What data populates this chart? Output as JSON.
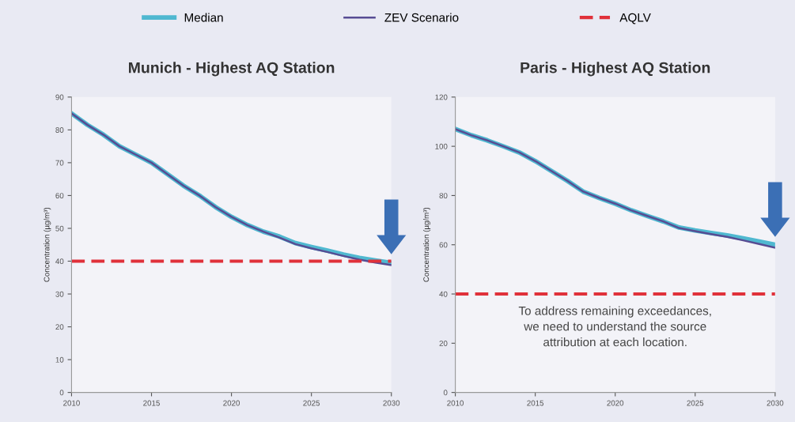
{
  "chart_data": [
    {
      "type": "line",
      "title": "Munich - Highest AQ Station",
      "ylabel": "Concentration (µg/m³)",
      "x": [
        2010,
        2011,
        2012,
        2013,
        2014,
        2015,
        2016,
        2017,
        2018,
        2019,
        2020,
        2021,
        2022,
        2023,
        2024,
        2025,
        2026,
        2027,
        2028,
        2029,
        2030
      ],
      "series": [
        {
          "name": "Median",
          "color": "#4fb8d0",
          "values": [
            85,
            81.5,
            78.5,
            75,
            72.5,
            70,
            66.5,
            63,
            60,
            56.5,
            53.5,
            51,
            49,
            47.5,
            45.5,
            44.3,
            43.2,
            42,
            41,
            40.2,
            39.5
          ]
        },
        {
          "name": "ZEV Scenario",
          "color": "#574c93",
          "values": [
            85,
            81.5,
            78.5,
            75,
            72.5,
            70,
            66.5,
            63,
            60,
            56.5,
            53.5,
            51,
            49,
            47.2,
            45.2,
            43.9,
            42.8,
            41.6,
            40.5,
            39.6,
            38.8
          ]
        }
      ],
      "ref_lines": [
        {
          "axis": "y",
          "value": 40,
          "label": "AQLV",
          "color": "#e0313a",
          "line_style": "dashed"
        }
      ],
      "xlim": [
        2010,
        2030
      ],
      "xticks": [
        2010,
        2015,
        2020,
        2025,
        2030
      ],
      "ylim": [
        0,
        90
      ],
      "yticks": [
        0,
        10,
        20,
        30,
        40,
        50,
        60,
        70,
        80,
        90
      ],
      "grid": false,
      "legend": "top"
    },
    {
      "type": "line",
      "title": "Paris - Highest AQ Station",
      "ylabel": "Concentration (µg/m³)",
      "x": [
        2010,
        2011,
        2012,
        2013,
        2014,
        2015,
        2016,
        2017,
        2018,
        2019,
        2020,
        2021,
        2022,
        2023,
        2024,
        2025,
        2026,
        2027,
        2028,
        2029,
        2030
      ],
      "series": [
        {
          "color": "#4fb8d0",
          "values": [
            107,
            104.5,
            102.4,
            100,
            97.5,
            94,
            90,
            86,
            81.6,
            79,
            76.7,
            74,
            71.7,
            69.5,
            67,
            65.8,
            64.8,
            63.8,
            62.6,
            61.3,
            60
          ]
        },
        {
          "color": "#574c93",
          "values": [
            107,
            104.5,
            102.4,
            100,
            97.5,
            94,
            90,
            86,
            81.6,
            79,
            76.7,
            74,
            71.7,
            69.5,
            66.8,
            65.5,
            64.3,
            63.2,
            61.8,
            60.3,
            58.8
          ]
        }
      ],
      "ref_lines": [
        {
          "axis": "y",
          "value": 40,
          "color": "#e0313a",
          "line_style": "dashed"
        }
      ],
      "annotations": [
        "To address remaining exceedances,\nwe need to understand the source\nattribution at each location."
      ],
      "xlim": [
        2010,
        2030
      ],
      "xticks": [
        2010,
        2015,
        2020,
        2025,
        2030
      ],
      "ylim": [
        0,
        120
      ],
      "yticks": [
        0,
        20,
        40,
        60,
        80,
        100,
        120
      ],
      "grid": false,
      "legend": false
    }
  ]
}
